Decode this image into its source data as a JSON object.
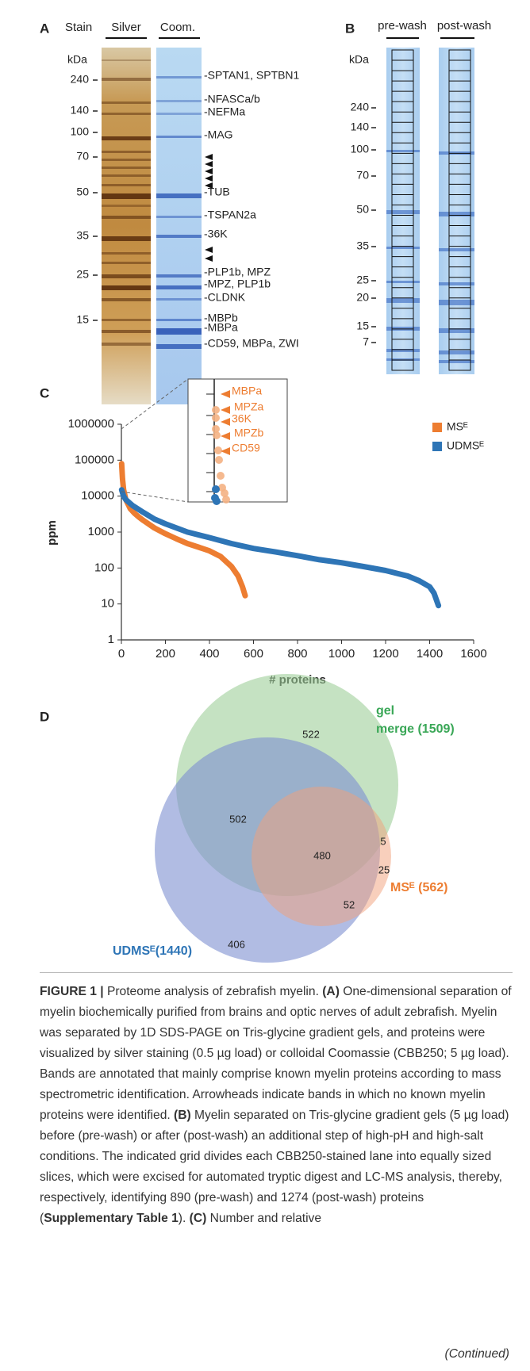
{
  "panel_a": {
    "label": "A",
    "header": "Stain",
    "lanes": [
      "Silver",
      "Coom."
    ],
    "kda": "kDa",
    "markers": [
      "240",
      "140",
      "100",
      "70",
      "50",
      "35",
      "25",
      "15"
    ],
    "bands": [
      "-SPTAN1, SPTBN1",
      "-NFASCa/b",
      "-NEFMa",
      "-MAG",
      "-TUB",
      "-TSPAN2a",
      "-36K",
      "-PLP1b, MPZ",
      "-MPZ, PLP1b",
      "-CLDNK",
      "-MBPb",
      "-MBPa",
      "-CD59, MBPa, ZWI"
    ]
  },
  "panel_b": {
    "label": "B",
    "lanes": [
      "pre-wash",
      "post-wash"
    ],
    "kda": "kDa",
    "markers": [
      "240",
      "140",
      "100",
      "70",
      "50",
      "35",
      "25",
      "20",
      "15",
      "7"
    ]
  },
  "chart_data": {
    "type": "scatter",
    "label": "C",
    "xlabel": "# proteins",
    "ylabel": "ppm",
    "log_y": true,
    "legend": "upper right",
    "xlim": [
      0,
      1600
    ],
    "ylim": [
      1,
      1000000
    ],
    "xticks": [
      0,
      200,
      400,
      600,
      800,
      1000,
      1200,
      1400,
      1600
    ],
    "yticks": [
      1,
      10,
      100,
      1000,
      10000,
      100000,
      1000000
    ],
    "series": [
      {
        "name": "MSᴱ",
        "color": "#ed7d31",
        "x": [
          1,
          5,
          10,
          20,
          40,
          60,
          80,
          100,
          150,
          200,
          250,
          300,
          350,
          400,
          450,
          500,
          530,
          550,
          562
        ],
        "values": [
          80000,
          30000,
          15000,
          8000,
          4500,
          3300,
          2600,
          2100,
          1300,
          900,
          650,
          480,
          380,
          300,
          210,
          110,
          60,
          30,
          17
        ]
      },
      {
        "name": "UDMSᴱ",
        "color": "#2e75b6",
        "x": [
          1,
          10,
          20,
          50,
          100,
          150,
          200,
          300,
          400,
          500,
          600,
          700,
          800,
          900,
          1000,
          1100,
          1200,
          1300,
          1350,
          1400,
          1420,
          1440
        ],
        "values": [
          15000,
          10000,
          8000,
          5500,
          3500,
          2300,
          1700,
          1000,
          700,
          480,
          350,
          280,
          220,
          170,
          140,
          110,
          85,
          60,
          45,
          30,
          20,
          9
        ]
      }
    ],
    "inset_labels": [
      "MBPa",
      "MPZa",
      "36K",
      "MPZb",
      "CD59"
    ]
  },
  "panel_d": {
    "label": "D",
    "gel_label": [
      "gel",
      "merge (1509)"
    ],
    "mse_label": "MSᴱ (562)",
    "udmse_label": "UDMSᴱ(1440)",
    "counts": [
      "522",
      "502",
      "480",
      "5",
      "25",
      "52",
      "406"
    ]
  },
  "caption": {
    "segments": [
      {
        "text": "FIGURE 1 |",
        "bold": true
      },
      {
        "text": " Proteome analysis of zebrafish myelin. ",
        "bold": false
      },
      {
        "text": "(A)",
        "bold": true
      },
      {
        "text": " One-dimensional separation of myelin biochemically purified from brains and optic nerves of adult zebrafish. Myelin was separated by 1D SDS-PAGE on Tris-glycine gradient gels, and proteins were visualized by silver staining (0.5 µg load) or colloidal Coomassie (CBB250; 5 µg load). Bands are annotated that mainly comprise known myelin proteins according to mass spectrometric identification. Arrowheads indicate bands in which no known myelin proteins were identified. ",
        "bold": false
      },
      {
        "text": "(B)",
        "bold": true
      },
      {
        "text": " Myelin separated on Tris-glycine gradient gels (5 µg load) before (pre-wash) or after (post-wash) an additional step of high-pH and high-salt conditions. The indicated grid divides each CBB250-stained lane into equally sized slices, which were excised for automated tryptic digest and LC-MS analysis, thereby, respectively, identifying 890 (pre-wash) and 1274 (post-wash) proteins (",
        "bold": false
      },
      {
        "text": "Supplementary Table 1",
        "bold": true
      },
      {
        "text": "). ",
        "bold": false
      },
      {
        "text": "(C)",
        "bold": true
      },
      {
        "text": " Number and relative",
        "bold": false
      }
    ],
    "continued": "(Continued)"
  }
}
